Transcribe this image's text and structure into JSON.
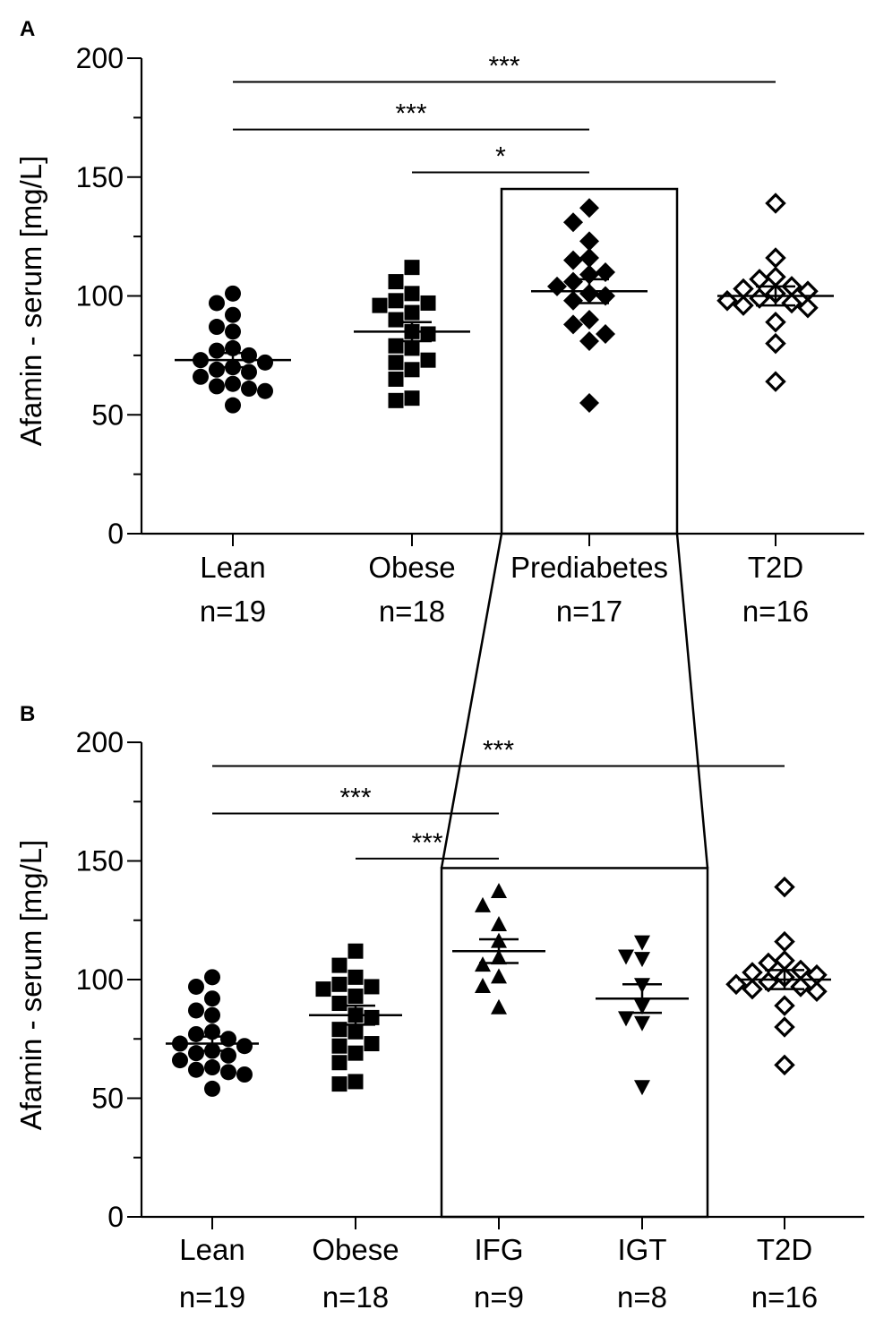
{
  "chart_data": [
    {
      "panel": "A",
      "type": "scatter",
      "subtype": "dot-plot with mean and SEM",
      "ylabel": "Afamin - serum [mg/L]",
      "ylim": [
        0,
        200
      ],
      "yticks": [
        0,
        50,
        100,
        150,
        200
      ],
      "groups": [
        {
          "name": "Lean",
          "n_label": "n=19",
          "marker": "circle-filled",
          "mean": 73,
          "sem": 3,
          "values": [
            101,
            97,
            92,
            87,
            85,
            78,
            77,
            75,
            73,
            72,
            70,
            69,
            68,
            66,
            63,
            62,
            61,
            60,
            54
          ]
        },
        {
          "name": "Obese",
          "n_label": "n=18",
          "marker": "square-filled",
          "mean": 85,
          "sem": 4,
          "values": [
            112,
            106,
            101,
            98,
            97,
            96,
            93,
            90,
            85,
            84,
            79,
            78,
            73,
            72,
            69,
            65,
            57,
            56
          ]
        },
        {
          "name": "Prediabetes",
          "n_label": "n=17",
          "marker": "diamond-filled",
          "mean": 102,
          "sem": 5,
          "values": [
            137,
            131,
            123,
            116,
            115,
            110,
            109,
            106,
            104,
            101,
            100,
            98,
            90,
            88,
            84,
            81,
            55
          ]
        },
        {
          "name": "T2D",
          "n_label": "n=16",
          "marker": "diamond-open",
          "mean": 100,
          "sem": 4,
          "values": [
            139,
            116,
            108,
            107,
            104,
            103,
            102,
            101,
            99,
            98,
            97,
            96,
            95,
            89,
            80,
            64
          ]
        }
      ],
      "significance": [
        {
          "from": "Lean",
          "to": "T2D",
          "label": "***",
          "level": 190
        },
        {
          "from": "Lean",
          "to": "Prediabetes",
          "label": "***",
          "level": 170
        },
        {
          "from": "Obese",
          "to": "Prediabetes",
          "label": "*",
          "level": 152
        }
      ],
      "highlight_box": {
        "group": "Prediabetes",
        "top": 145
      }
    },
    {
      "panel": "B",
      "type": "scatter",
      "subtype": "dot-plot with mean and SEM",
      "ylabel": "Afamin - serum [mg/L]",
      "ylim": [
        0,
        200
      ],
      "yticks": [
        0,
        50,
        100,
        150,
        200
      ],
      "groups": [
        {
          "name": "Lean",
          "n_label": "n=19",
          "marker": "circle-filled",
          "mean": 73,
          "sem": 3,
          "values": [
            101,
            97,
            92,
            87,
            85,
            78,
            77,
            75,
            73,
            72,
            70,
            69,
            68,
            66,
            63,
            62,
            61,
            60,
            54
          ]
        },
        {
          "name": "Obese",
          "n_label": "n=18",
          "marker": "square-filled",
          "mean": 85,
          "sem": 4,
          "values": [
            112,
            106,
            101,
            98,
            97,
            96,
            93,
            90,
            85,
            84,
            79,
            78,
            73,
            72,
            69,
            65,
            57,
            56
          ]
        },
        {
          "name": "IFG",
          "n_label": "n=9",
          "marker": "triangle-up-filled",
          "mean": 112,
          "sem": 5,
          "values": [
            137,
            131,
            123,
            116,
            109,
            106,
            101,
            97,
            88
          ]
        },
        {
          "name": "IGT",
          "n_label": "n=8",
          "marker": "triangle-down-filled",
          "mean": 92,
          "sem": 6,
          "values": [
            116,
            110,
            109,
            98,
            89,
            84,
            82,
            55
          ]
        },
        {
          "name": "T2D",
          "n_label": "n=16",
          "marker": "diamond-open",
          "mean": 100,
          "sem": 4,
          "values": [
            139,
            116,
            108,
            107,
            104,
            103,
            102,
            101,
            99,
            98,
            97,
            96,
            95,
            89,
            80,
            64
          ]
        }
      ],
      "significance": [
        {
          "from": "Lean",
          "to": "T2D",
          "label": "***",
          "level": 190
        },
        {
          "from": "Lean",
          "to": "IFG",
          "label": "***",
          "level": 170
        },
        {
          "from": "Obese",
          "to": "IFG",
          "label": "***",
          "level": 151
        }
      ],
      "highlight_box": {
        "groups": [
          "IFG",
          "IGT"
        ],
        "top": 147
      }
    }
  ]
}
